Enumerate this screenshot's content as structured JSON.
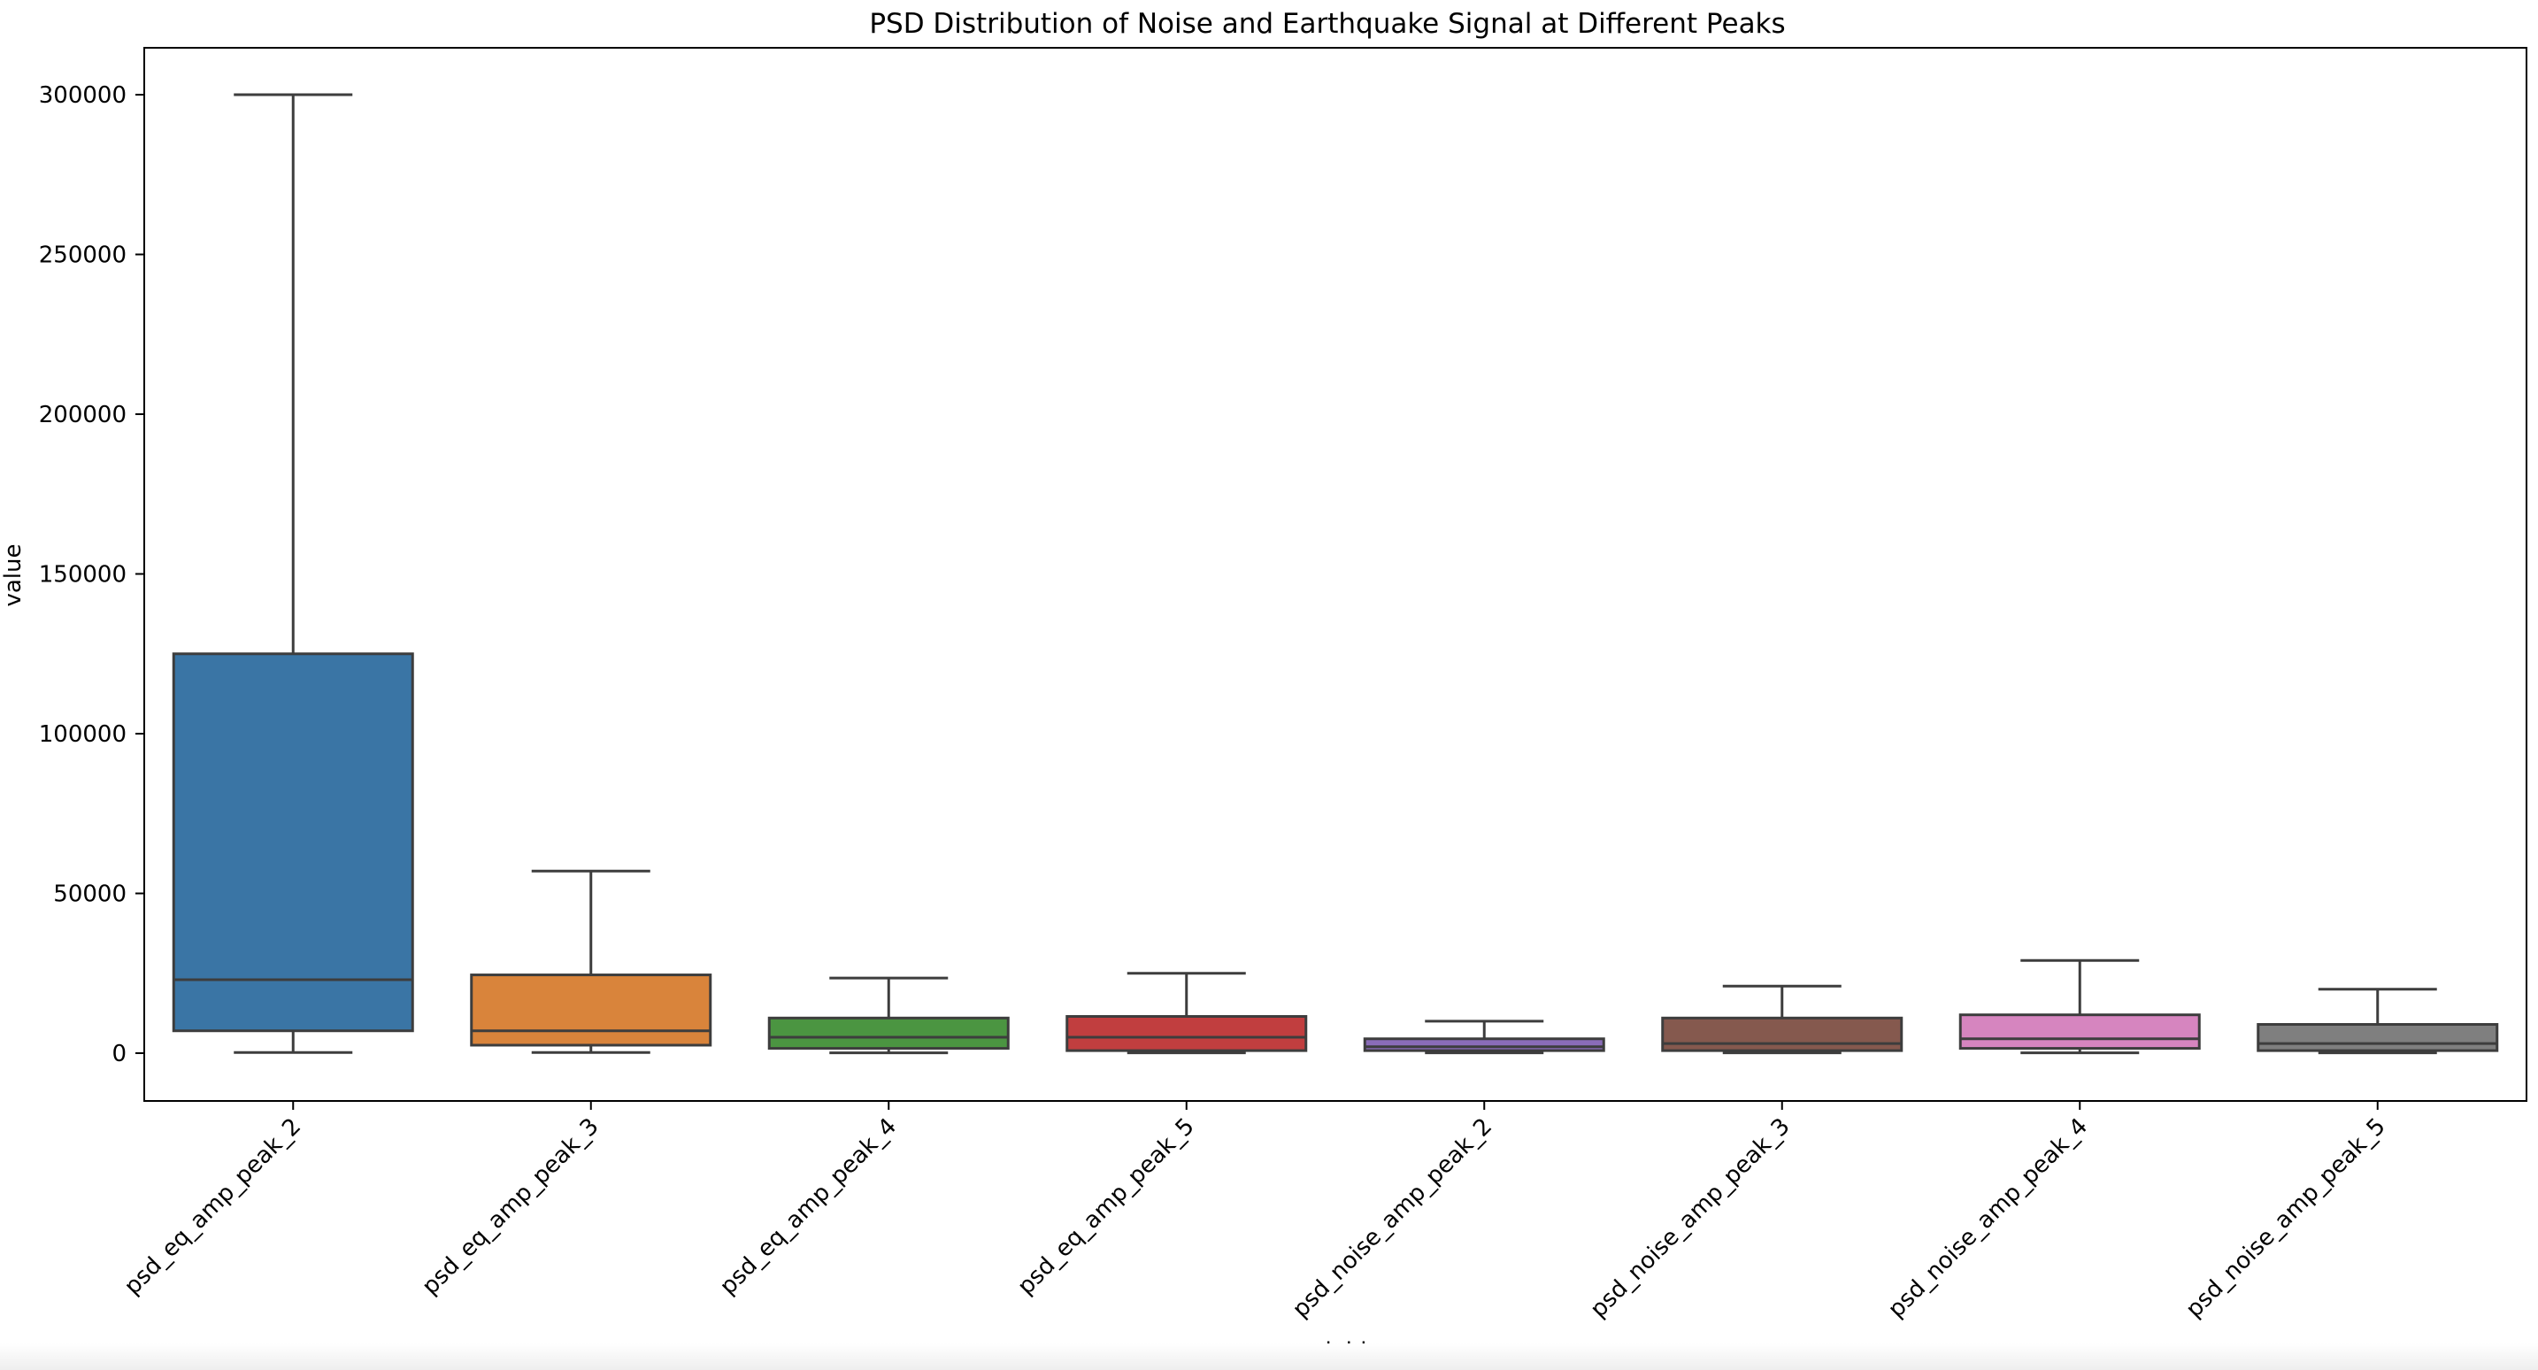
{
  "chart_data": {
    "type": "box",
    "title": "PSD Distribution of Noise and Earthquake Signal at Different Peaks",
    "xlabel": "variable",
    "ylabel": "value",
    "ylim": [
      -15000,
      315000
    ],
    "yticks": [
      0,
      50000,
      100000,
      150000,
      200000,
      250000,
      300000
    ],
    "grid": false,
    "legend": "none",
    "categories": [
      "psd_eq_amp_peak_2",
      "psd_eq_amp_peak_3",
      "psd_eq_amp_peak_4",
      "psd_eq_amp_peak_5",
      "psd_noise_amp_peak_2",
      "psd_noise_amp_peak_3",
      "psd_noise_amp_peak_4",
      "psd_noise_amp_peak_5"
    ],
    "boxes": [
      {
        "whisker_low": 200,
        "q1": 7000,
        "median": 23000,
        "q3": 125000,
        "whisker_high": 300000,
        "color": "#3a75a5"
      },
      {
        "whisker_low": 200,
        "q1": 2500,
        "median": 7000,
        "q3": 24500,
        "whisker_high": 57000,
        "color": "#d9843b"
      },
      {
        "whisker_low": 100,
        "q1": 1500,
        "median": 5000,
        "q3": 11000,
        "whisker_high": 23500,
        "color": "#4b9541"
      },
      {
        "whisker_low": 100,
        "q1": 800,
        "median": 5000,
        "q3": 11500,
        "whisker_high": 25000,
        "color": "#c13e3f"
      },
      {
        "whisker_low": 100,
        "q1": 800,
        "median": 2000,
        "q3": 4500,
        "whisker_high": 10000,
        "color": "#8a6cb8"
      },
      {
        "whisker_low": 100,
        "q1": 800,
        "median": 3000,
        "q3": 11000,
        "whisker_high": 21000,
        "color": "#85594e"
      },
      {
        "whisker_low": 100,
        "q1": 1500,
        "median": 4500,
        "q3": 12000,
        "whisker_high": 29000,
        "color": "#d685bf"
      },
      {
        "whisker_low": 100,
        "q1": 800,
        "median": 3000,
        "q3": 9000,
        "whisker_high": 20000,
        "color": "#7f7f7f"
      }
    ]
  }
}
